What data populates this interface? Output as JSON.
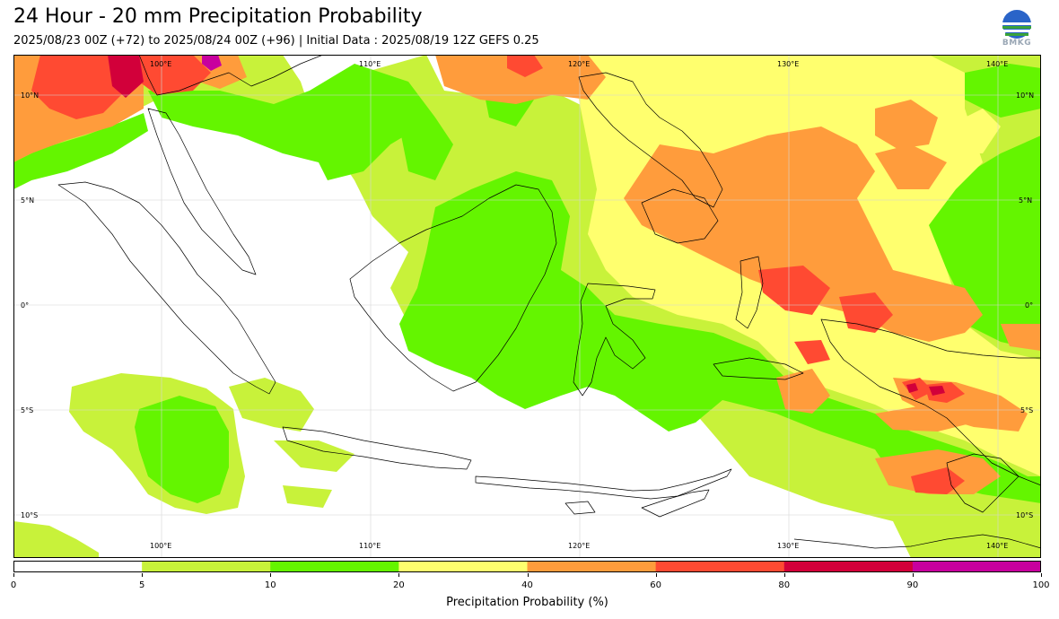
{
  "header": {
    "title": "24 Hour - 20 mm Precipitation Probability",
    "subtitle": "2025/08/23 00Z (+72) to 2025/08/24 00Z (+96) | Initial Data : 2025/08/19 12Z GEFS 0.25"
  },
  "logo": {
    "text": "BMKG",
    "icon": "bmkg-logo-icon"
  },
  "map": {
    "lon_labels_top": [
      "100°E",
      "110°E",
      "120°E",
      "130°E",
      "140°E"
    ],
    "lon_labels_bottom": [
      "100°E",
      "110°E",
      "120°E",
      "130°E",
      "140°E"
    ],
    "lat_labels_left": [
      "10°N",
      "5°N",
      "0°",
      "5°S",
      "10°S"
    ],
    "lat_labels_right": [
      "10°N",
      "5°N",
      "0°",
      "5°S",
      "10°S"
    ],
    "grid": true
  },
  "colorbar": {
    "label": "Precipitation Probability (%)",
    "ticks": [
      "0",
      "5",
      "10",
      "20",
      "40",
      "60",
      "80",
      "90",
      "100"
    ],
    "colors": [
      "#ffffff",
      "#c8f23a",
      "#64f500",
      "#ffff6e",
      "#ff9c3c",
      "#ff4a32",
      "#d2003a",
      "#c8009e"
    ]
  }
}
